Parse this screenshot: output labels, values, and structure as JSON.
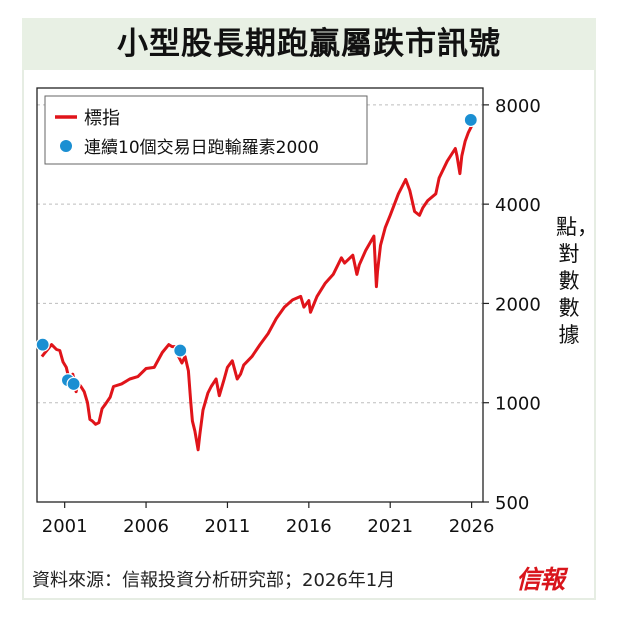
{
  "title": "小型股長期跑贏屬跌市訊號",
  "unit_label": "點，對數數據",
  "source": "資料來源：信報投資分析研究部；2026年1月",
  "logo": "信報",
  "colors": {
    "line": "#e0141a",
    "marker": "#1b8fd2",
    "title_bg": "#e8f0e4"
  },
  "legend": {
    "placement": "top-left",
    "line_label": "標指",
    "marker_label": "連續10個交易日跑輸羅素2000"
  },
  "chart_data": {
    "type": "line",
    "x_scale": "time",
    "y_scale": "log",
    "ylim": [
      500,
      9000
    ],
    "yticks": [
      500,
      1000,
      2000,
      4000,
      8000
    ],
    "ytick_labels": [
      "500",
      "1000",
      "2000",
      "4000",
      "8000"
    ],
    "xticks": [
      2001,
      2006,
      2011,
      2016,
      2021,
      2026
    ],
    "xtick_labels": [
      "2001",
      "2006",
      "2011",
      "2016",
      "2021",
      "2026"
    ],
    "grid": "horizontal-dashed",
    "series": [
      {
        "name": "標指",
        "x": [
          1999.6,
          1999.8,
          2000.0,
          2000.2,
          2000.5,
          2000.7,
          2000.9,
          2001.1,
          2001.3,
          2001.5,
          2001.7,
          2001.8,
          2002.0,
          2002.2,
          2002.4,
          2002.55,
          2002.7,
          2002.8,
          2002.9,
          2003.1,
          2003.3,
          2003.5,
          2003.8,
          2004.0,
          2004.5,
          2005.0,
          2005.5,
          2006.0,
          2006.5,
          2007.0,
          2007.4,
          2007.6,
          2007.8,
          2008.0,
          2008.2,
          2008.4,
          2008.6,
          2008.75,
          2008.85,
          2009.0,
          2009.2,
          2009.3,
          2009.5,
          2009.8,
          2010.0,
          2010.3,
          2010.5,
          2010.8,
          2011.0,
          2011.3,
          2011.6,
          2011.8,
          2012.0,
          2012.5,
          2013.0,
          2013.5,
          2014.0,
          2014.5,
          2015.0,
          2015.5,
          2015.7,
          2016.0,
          2016.1,
          2016.5,
          2017.0,
          2017.5,
          2018.0,
          2018.2,
          2018.7,
          2018.95,
          2019.1,
          2019.5,
          2020.0,
          2020.15,
          2020.22,
          2020.4,
          2020.7,
          2021.0,
          2021.5,
          2021.95,
          2022.2,
          2022.5,
          2022.8,
          2023.0,
          2023.3,
          2023.8,
          2024.0,
          2024.5,
          2025.0,
          2025.1,
          2025.28,
          2025.4,
          2025.6,
          2025.8,
          2026.0
        ],
        "y": [
          1380,
          1420,
          1460,
          1500,
          1450,
          1440,
          1330,
          1280,
          1160,
          1220,
          1080,
          1150,
          1120,
          1080,
          1000,
          890,
          880,
          870,
          860,
          870,
          960,
          990,
          1040,
          1120,
          1140,
          1180,
          1200,
          1270,
          1280,
          1420,
          1500,
          1480,
          1480,
          1380,
          1320,
          1380,
          1250,
          1000,
          880,
          820,
          720,
          800,
          950,
          1070,
          1120,
          1180,
          1050,
          1180,
          1280,
          1340,
          1180,
          1220,
          1300,
          1380,
          1500,
          1620,
          1800,
          1950,
          2050,
          2100,
          1950,
          2040,
          1880,
          2100,
          2300,
          2450,
          2750,
          2650,
          2800,
          2450,
          2620,
          2900,
          3200,
          2250,
          2500,
          3000,
          3400,
          3700,
          4300,
          4750,
          4400,
          3800,
          3700,
          3900,
          4100,
          4300,
          4800,
          5400,
          5900,
          5600,
          4950,
          5600,
          6200,
          6600,
          6900
        ]
      },
      {
        "name": "連續10個交易日跑輸羅素2000",
        "type": "scatter",
        "x": [
          1999.65,
          2001.2,
          2001.55,
          2008.1,
          2025.95
        ],
        "y": [
          1500,
          1170,
          1140,
          1440,
          7200
        ]
      }
    ]
  }
}
